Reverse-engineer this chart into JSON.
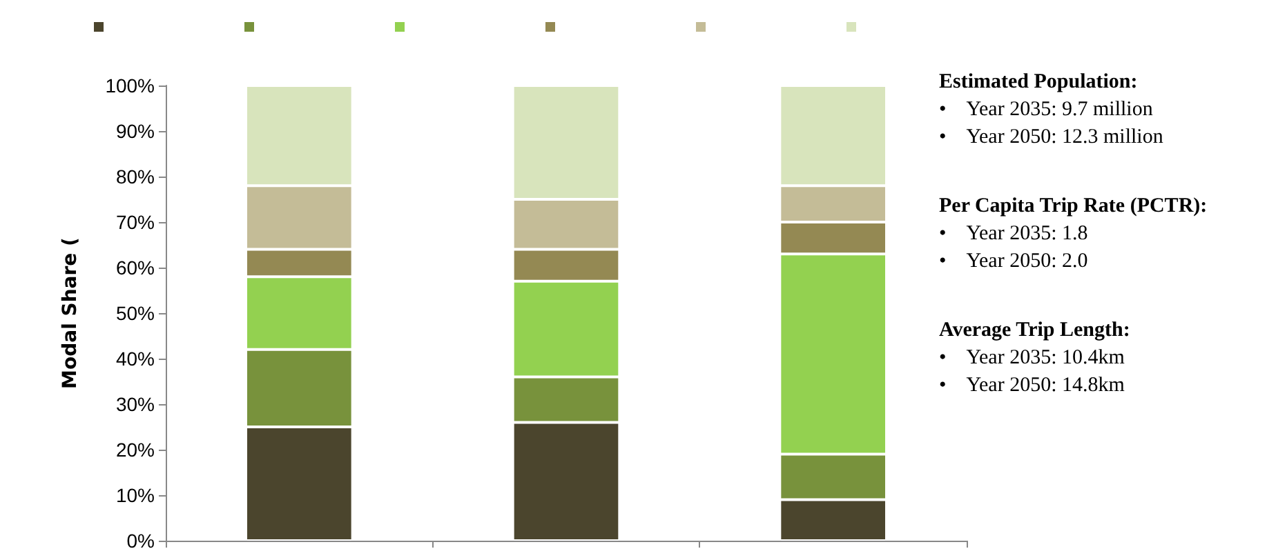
{
  "chart_data": {
    "type": "bar",
    "stacked": true,
    "ylabel": "Modal Share (",
    "categories": [
      null,
      null,
      null
    ],
    "series": [
      {
        "color": "#4b452d",
        "values": [
          25,
          26,
          9
        ]
      },
      {
        "color": "#78923c",
        "values": [
          17,
          10,
          10
        ]
      },
      {
        "color": "#93d150",
        "values": [
          16,
          21,
          44
        ]
      },
      {
        "color": "#948953",
        "values": [
          6,
          7,
          7
        ]
      },
      {
        "color": "#c4bc97",
        "values": [
          14,
          11,
          8
        ]
      },
      {
        "color": "#d8e4bc",
        "values": [
          22,
          25,
          22
        ]
      }
    ],
    "ylim": [
      0,
      100
    ],
    "yticks": [
      {
        "value": 0,
        "label": "0%"
      },
      {
        "value": 10,
        "label": "10%"
      },
      {
        "value": 20,
        "label": "20%"
      },
      {
        "value": 30,
        "label": "30%"
      },
      {
        "value": 40,
        "label": "40%"
      },
      {
        "value": 50,
        "label": "50%"
      },
      {
        "value": 60,
        "label": "60%"
      },
      {
        "value": 70,
        "label": "70%"
      },
      {
        "value": 80,
        "label": "80%"
      },
      {
        "value": 90,
        "label": "90%"
      },
      {
        "value": 100,
        "label": "100%"
      }
    ],
    "grid": false,
    "annotations": [
      "Estimated Population:\n•    Year 2035: 9.7 million\n•    Year 2050: 12.3 million",
      "Per Capita Trip Rate (PCTR):\n•    Year 2035: 1.8\n•    Year 2050: 2.0",
      "Average Trip Length:\n•    Year 2035: 10.4km\n•    Year 2050: 14.8km"
    ]
  }
}
